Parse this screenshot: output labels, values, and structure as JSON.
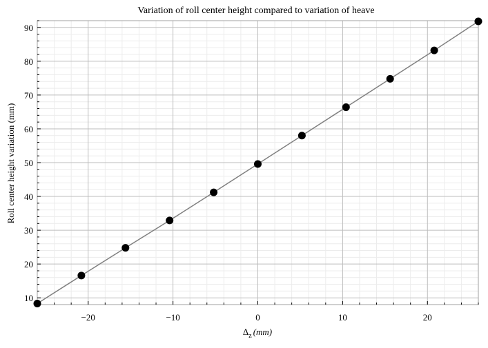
{
  "chart_data": {
    "type": "scatter",
    "title": "Variation of roll center height compared to variation of heave",
    "xlabel_main": "Δ",
    "xlabel_sub": "z",
    "xlabel_unit": "(mm)",
    "ylabel": "Roll center height variation (mm)",
    "xlim": [
      -26,
      26
    ],
    "ylim": [
      8,
      92
    ],
    "xticks": [
      -20,
      -10,
      0,
      10,
      20
    ],
    "xtick_labels": [
      "−20",
      "−10",
      "0",
      "10",
      "20"
    ],
    "yticks": [
      10,
      20,
      30,
      40,
      50,
      60,
      70,
      80,
      90
    ],
    "ytick_labels": [
      "10",
      "20",
      "30",
      "40",
      "50",
      "60",
      "70",
      "80",
      "90"
    ],
    "grid": true,
    "series": [
      {
        "x": [
          -26,
          -20.8,
          -15.6,
          -10.4,
          -5.2,
          0,
          5.2,
          10.4,
          15.6,
          20.8,
          26
        ],
        "y": [
          8.3,
          16.6,
          24.8,
          32.9,
          41.2,
          49.6,
          58.0,
          66.4,
          74.8,
          83.2,
          91.8
        ],
        "line_color": "#808080",
        "marker_color": "#000000"
      }
    ]
  }
}
